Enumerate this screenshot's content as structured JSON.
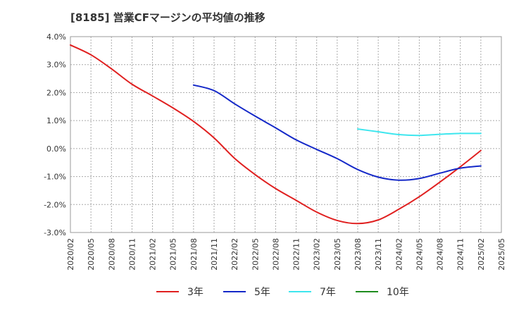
{
  "chart_data": {
    "type": "line",
    "title": "[8185]  営業CFマージンの平均値の推移",
    "xlabel": "",
    "ylabel": "",
    "ylim": [
      -3.0,
      4.0
    ],
    "y_ticks": [
      "4.0%",
      "3.0%",
      "2.0%",
      "1.0%",
      "0.0%",
      "-1.0%",
      "-2.0%",
      "-3.0%"
    ],
    "x": [
      "2020/02",
      "2020/05",
      "2020/08",
      "2020/11",
      "2021/02",
      "2021/05",
      "2021/08",
      "2021/11",
      "2022/02",
      "2022/05",
      "2022/08",
      "2022/11",
      "2023/02",
      "2023/05",
      "2023/08",
      "2023/11",
      "2024/02",
      "2024/05",
      "2024/08",
      "2024/11",
      "2025/02",
      "2025/05"
    ],
    "grid": true,
    "legend_position": "bottom",
    "series": [
      {
        "name": "3年",
        "color": "#e02020",
        "values": [
          3.7,
          3.35,
          2.85,
          2.3,
          1.88,
          1.45,
          0.97,
          0.38,
          -0.35,
          -0.93,
          -1.43,
          -1.85,
          -2.27,
          -2.57,
          -2.68,
          -2.55,
          -2.17,
          -1.72,
          -1.2,
          -0.65,
          -0.07,
          null
        ]
      },
      {
        "name": "5年",
        "color": "#1428c8",
        "values": [
          null,
          null,
          null,
          null,
          null,
          null,
          2.27,
          2.07,
          1.6,
          1.16,
          0.74,
          0.31,
          -0.03,
          -0.36,
          -0.75,
          -1.02,
          -1.13,
          -1.07,
          -0.88,
          -0.7,
          -0.62,
          null
        ]
      },
      {
        "name": "7年",
        "color": "#3ee6ee",
        "values": [
          null,
          null,
          null,
          null,
          null,
          null,
          null,
          null,
          null,
          null,
          null,
          null,
          null,
          null,
          0.7,
          0.6,
          0.5,
          0.47,
          0.51,
          0.54,
          0.54,
          null
        ]
      },
      {
        "name": "10年",
        "color": "#1e8c1e",
        "values": [
          null,
          null,
          null,
          null,
          null,
          null,
          null,
          null,
          null,
          null,
          null,
          null,
          null,
          null,
          null,
          null,
          null,
          null,
          null,
          null,
          null,
          null
        ]
      }
    ]
  }
}
